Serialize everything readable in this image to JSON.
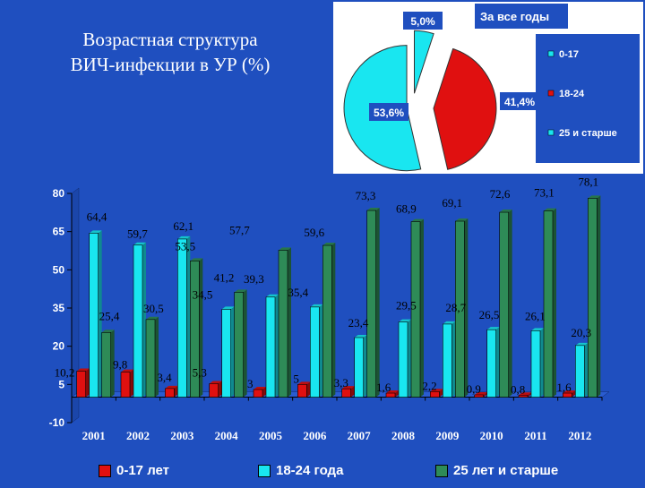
{
  "slide": {
    "title_line1": "Возрастная структура",
    "title_line2": "ВИЧ-инфекции в УР (%)"
  },
  "colors": {
    "background": "#1f4fbf",
    "series_0_17": "#e01010",
    "series_18_24": "#19e6f0",
    "series_25plus": "#2e8b57",
    "pie_legend_box": "#1f4fbf",
    "pie_slice_18_24": "#e01010",
    "pie_slice_0_17": "#19e6f0",
    "pie_slice_25plus": "#19e6f0"
  },
  "chart_data": [
    {
      "type": "pie",
      "title": "За все годы",
      "labels": [
        "0-17",
        "18-24",
        "25 и старше"
      ],
      "values": [
        5.0,
        41.4,
        53.6
      ],
      "value_labels": [
        "5,0%",
        "41,4%",
        "53,6%"
      ],
      "legend_position": "right"
    },
    {
      "type": "bar",
      "categories": [
        "2001",
        "2002",
        "2003",
        "2004",
        "2005",
        "2006",
        "2007",
        "2008",
        "2009",
        "2010",
        "2011",
        "2012"
      ],
      "series": [
        {
          "name": "0-17 лет",
          "values": [
            10.2,
            9.8,
            3.4,
            5.3,
            3,
            5,
            3.3,
            1.6,
            2.2,
            0.9,
            0.8,
            1.6
          ],
          "labels": [
            "10,2",
            "9,8",
            "3,4",
            "5,3",
            "3",
            "5",
            "3,3",
            "1,6",
            "2,2",
            "0,9",
            "0,8",
            "1,6"
          ]
        },
        {
          "name": "18-24 года",
          "values": [
            64.4,
            59.7,
            62.1,
            34.5,
            39.3,
            35.4,
            23.4,
            29.5,
            28.7,
            26.5,
            26.1,
            20.3
          ],
          "labels": [
            "64,4",
            "59,7",
            "62,1",
            "34,5",
            "39,3",
            "35,4",
            "23,4",
            "29,5",
            "28,7",
            "26,5",
            "26,1",
            "20,3"
          ]
        },
        {
          "name": "25 лет и старше",
          "values": [
            25.4,
            30.5,
            53.5,
            41.2,
            57.7,
            59.6,
            73.3,
            68.9,
            69.1,
            72.6,
            73.1,
            78.1
          ],
          "labels": [
            "25,4",
            "30,5",
            "53,5",
            "41,2",
            "57,7",
            "59,6",
            "73,3",
            "68,9",
            "69,1",
            "72,6",
            "73,1",
            "78,1"
          ]
        }
      ],
      "ylim": [
        -10,
        80
      ],
      "y_ticks": [
        "-10",
        "5",
        "20",
        "35",
        "50",
        "65",
        "80"
      ],
      "legend_position": "bottom",
      "grid": false
    }
  ]
}
